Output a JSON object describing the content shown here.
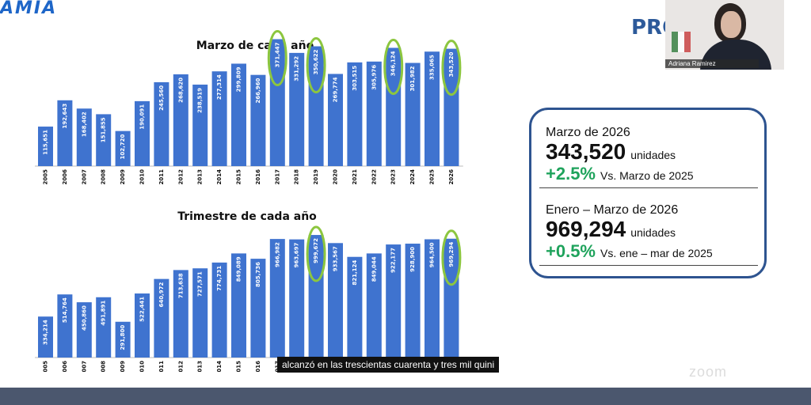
{
  "header": {
    "logo_text": "AMIA",
    "partial_title": "PRO"
  },
  "video": {
    "participant_name": "Adriana Ramirez"
  },
  "chart_data": [
    {
      "type": "bar",
      "title": "Marzo de cada año",
      "categories": [
        "2005",
        "2006",
        "2007",
        "2008",
        "2009",
        "2010",
        "2011",
        "2012",
        "2013",
        "2014",
        "2015",
        "2016",
        "2017",
        "2018",
        "2019",
        "2020",
        "2021",
        "2022",
        "2023",
        "2024",
        "2025",
        "2026"
      ],
      "values": [
        115651,
        192643,
        168402,
        151855,
        102720,
        190091,
        245560,
        268620,
        238519,
        277314,
        299809,
        266960,
        371447,
        331292,
        350622,
        269774,
        303515,
        305976,
        346124,
        301982,
        335065,
        343520
      ],
      "labels": [
        "115,651",
        "192,643",
        "168,402",
        "151,855",
        "102,720",
        "190,091",
        "245,560",
        "268,620",
        "238,519",
        "277,314",
        "299,809",
        "266,960",
        "371,447",
        "331,292",
        "350,622",
        "269,774",
        "303,515",
        "305,976",
        "346,124",
        "301,982",
        "335,065",
        "343,520"
      ],
      "highlighted": [
        "2017",
        "2019",
        "2023",
        "2026"
      ],
      "xlabel": "",
      "ylabel": "",
      "ylim": [
        0,
        400000
      ],
      "colors": {
        "bar": "#3f73cf",
        "highlight": "#8cc63f"
      }
    },
    {
      "type": "bar",
      "title": "Trimestre de cada año",
      "categories": [
        "2005",
        "2006",
        "2007",
        "2008",
        "2009",
        "2010",
        "2011",
        "2012",
        "2013",
        "2014",
        "2015",
        "2016",
        "2017",
        "2018",
        "2019",
        "2020",
        "2021",
        "2022",
        "2023",
        "2024",
        "2025",
        "2026"
      ],
      "values": [
        334214,
        514764,
        450860,
        491891,
        291800,
        522441,
        640972,
        713638,
        727571,
        774731,
        849089,
        805736,
        966982,
        963697,
        999672,
        933567,
        821124,
        849044,
        922177,
        928900,
        964500,
        969294
      ],
      "labels": [
        "334,214",
        "514,764",
        "450,860",
        "491,891",
        "291,800",
        "522,441",
        "640,972",
        "713,638",
        "727,571",
        "774,731",
        "849,089",
        "805,736",
        "966,982",
        "963,697",
        "999,672",
        "933,567",
        "821,124",
        "849,044",
        "922,177",
        "928,900",
        "964,500",
        "969,294"
      ],
      "highlighted": [
        "2019",
        "2026"
      ],
      "xlabel": "",
      "ylabel": "",
      "ylim": [
        0,
        1100000
      ],
      "colors": {
        "bar": "#3f73cf",
        "highlight": "#8cc63f"
      }
    }
  ],
  "summary": {
    "march": {
      "label": "Marzo de 2026",
      "value": "343,520",
      "unit": "unidades",
      "change": "+2.5%",
      "comparison": "Vs. Marzo de 2025"
    },
    "quarter": {
      "label": "Enero – Marzo de 2026",
      "value": "969,294",
      "unit": "unidades",
      "change": "+0.5%",
      "comparison": "Vs. ene – mar de 2025"
    },
    "colors": {
      "border": "#2e5490",
      "positive": "#1fa35c"
    }
  },
  "caption": {
    "text": "alcanzó en las trescientas cuarenta y tres mil quini"
  },
  "watermark": {
    "text": "zoom"
  }
}
